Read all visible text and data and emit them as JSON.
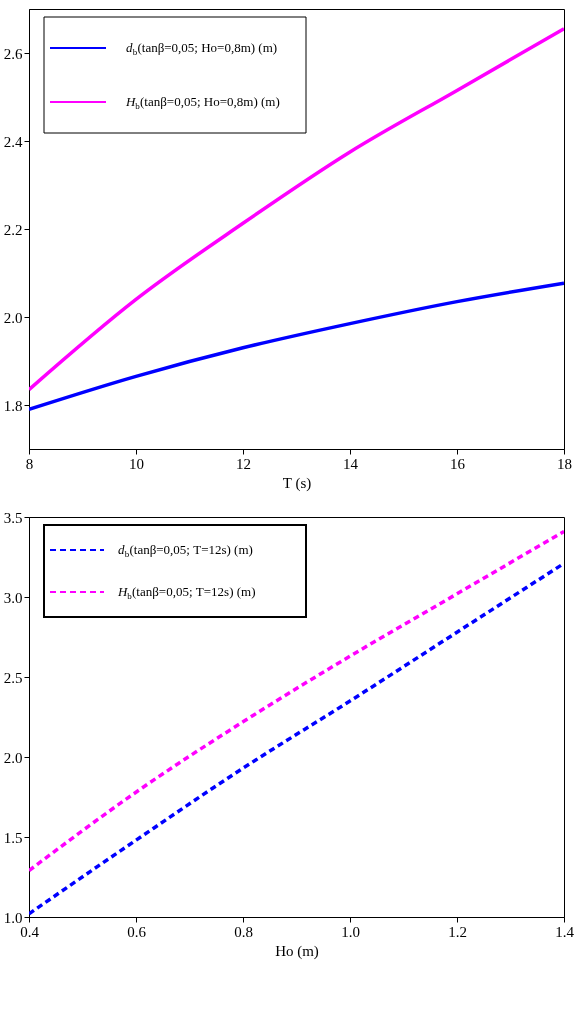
{
  "chart_data": [
    {
      "type": "line",
      "xlabel": "T (s)",
      "x": [
        8,
        10,
        12,
        14,
        16,
        18
      ],
      "xlim": [
        8,
        18
      ],
      "xticks": [
        8,
        10,
        12,
        14,
        16,
        18
      ],
      "ylim": [
        1.7,
        2.7
      ],
      "yticks": [
        1.8,
        {
          "value": 2,
          "label": "2.0"
        },
        2.2,
        2.4,
        2.6
      ],
      "legend": "top left",
      "line_style": "solid",
      "marker": "none",
      "grid": false,
      "series": [
        {
          "name": "d$_{b}$(tanβ=0,05; Ho=0,8m) (m)",
          "color": "#0000ff",
          "values": [
            1.79,
            1.865,
            1.93,
            1.985,
            2.035,
            2.077
          ]
        },
        {
          "name": "H$_{b}$(tanβ=0,05; Ho=0,8m) (m)",
          "color": "#ff00ff",
          "values": [
            1.835,
            2.04,
            2.213,
            2.375,
            2.515,
            2.655
          ]
        }
      ]
    },
    {
      "type": "line",
      "xlabel": "Ho (m)",
      "x": [
        0.4,
        0.6,
        0.8,
        1.0,
        1.2,
        1.4
      ],
      "xlim": [
        0.4,
        1.4
      ],
      "xticks": [
        0.4,
        0.6,
        0.8,
        {
          "value": 1,
          "label": "1.0"
        },
        1.2,
        1.4
      ],
      "ylim": [
        1,
        3.5
      ],
      "yticks": [
        {
          "value": 1,
          "label": "1.0"
        },
        1.5,
        {
          "value": 2,
          "label": "2.0"
        },
        2.5,
        {
          "value": 3,
          "label": "3.0"
        },
        3.5
      ],
      "legend": "top left",
      "line_style": "dashed",
      "marker": "none",
      "grid": false,
      "series": [
        {
          "name": "d$_{b}$(tanβ=0,05; T=12s) (m)",
          "color": "#0000ff",
          "values": [
            1.02,
            1.48,
            1.93,
            2.35,
            2.78,
            3.21
          ]
        },
        {
          "name": "H$_{b}$(tanβ=0,05; T=12s) (m)",
          "color": "#ff00ff",
          "values": [
            1.29,
            1.78,
            2.22,
            2.63,
            3.02,
            3.41
          ]
        }
      ]
    }
  ]
}
